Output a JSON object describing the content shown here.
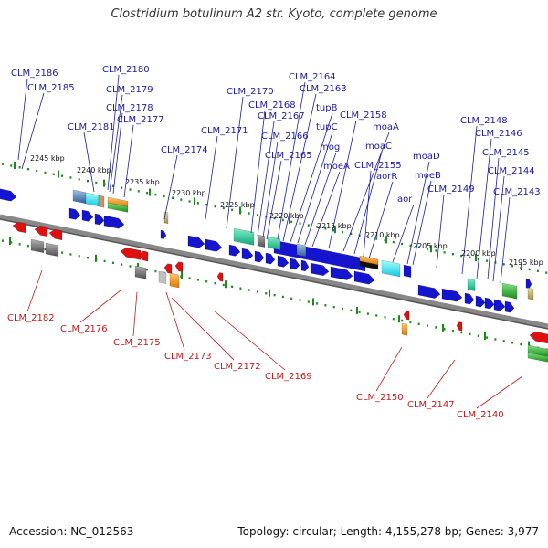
{
  "title": "Clostridium botulinum A2 str. Kyoto, complete genome",
  "footer": {
    "accession": "Accession: NC_012563",
    "summary": "Topology: circular; Length: 4,155,278 bp; Genes: 3,977"
  },
  "kbp_ticks": [
    "2245 kbp",
    "2240 kbp",
    "2235 kbp",
    "2230 kbp",
    "2225 kbp",
    "2220 kbp",
    "2215 kbp",
    "2210 kbp",
    "2205 kbp",
    "2200 kbp",
    "2195 kbp"
  ],
  "top_genes": [
    "CLM_2186",
    "CLM_2185",
    "CLM_2180",
    "CLM_2179",
    "CLM_2178",
    "CLM_2181",
    "CLM_2177",
    "CLM_2174",
    "CLM_2171",
    "CLM_2170",
    "CLM_2168",
    "CLM_2167",
    "CLM_2166",
    "CLM_2165",
    "CLM_2164",
    "CLM_2163",
    "tupB",
    "tupC",
    "mog",
    "moeA",
    "CLM_2158",
    "moaA",
    "moaC",
    "CLM_2155",
    "aorR",
    "aor",
    "moaD",
    "moeB",
    "CLM_2149",
    "CLM_2148",
    "CLM_2146",
    "CLM_2145",
    "CLM_2144",
    "CLM_2143"
  ],
  "bottom_genes": [
    "CLM_2182",
    "CLM_2176",
    "CLM_2175",
    "CLM_2173",
    "CLM_2172",
    "CLM_2169",
    "CLM_2150",
    "CLM_2147",
    "CLM_2140"
  ],
  "colors": {
    "forward": "#1515d0",
    "reverse": "#e01010",
    "backbone": "#777777",
    "tick": "#1a8a1a"
  }
}
